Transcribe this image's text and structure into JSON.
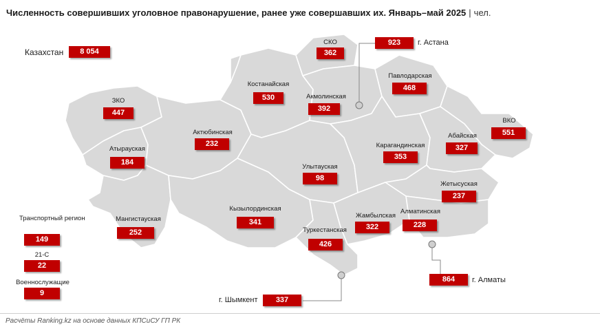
{
  "title": "Численность совершивших уголовное правонарушение, ранее уже совершавших их. Январь–май 2025",
  "unit": "чел.",
  "colors": {
    "badge": "#c00000",
    "region_fill": "#d9d9d9",
    "region_border": "#ffffff"
  },
  "total": {
    "label": "Казахстан",
    "value": "8 054"
  },
  "regions": [
    {
      "name": "СКО",
      "value": "362"
    },
    {
      "name": "Костанайская",
      "value": "530"
    },
    {
      "name": "Акмолинская",
      "value": "392"
    },
    {
      "name": "Павлодарская",
      "value": "468"
    },
    {
      "name": "ЗКО",
      "value": "447"
    },
    {
      "name": "Актюбинская",
      "value": "232"
    },
    {
      "name": "ВКО",
      "value": "551"
    },
    {
      "name": "Абайская",
      "value": "327"
    },
    {
      "name": "Атырауская",
      "value": "184"
    },
    {
      "name": "Карагандинская",
      "value": "353"
    },
    {
      "name": "Улытауская",
      "value": "98"
    },
    {
      "name": "Жетысуская",
      "value": "237"
    },
    {
      "name": "Мангистауская",
      "value": "252"
    },
    {
      "name": "Кызылординская",
      "value": "341"
    },
    {
      "name": "Жамбылская",
      "value": "322"
    },
    {
      "name": "Алматинская",
      "value": "228"
    },
    {
      "name": "Туркестанская",
      "value": "426"
    }
  ],
  "cities": [
    {
      "name": "г. Астана",
      "value": "923"
    },
    {
      "name": "г. Алматы",
      "value": "864"
    },
    {
      "name": "г. Шымкент",
      "value": "337"
    }
  ],
  "other": [
    {
      "name": "Транспортный регион",
      "value": "149"
    },
    {
      "name": "21-С",
      "value": "22"
    },
    {
      "name": "Военнослужащие",
      "value": "9"
    }
  ],
  "footer": "Расчёты Ranking.kz на основе данных КПСиСУ ГП РК"
}
